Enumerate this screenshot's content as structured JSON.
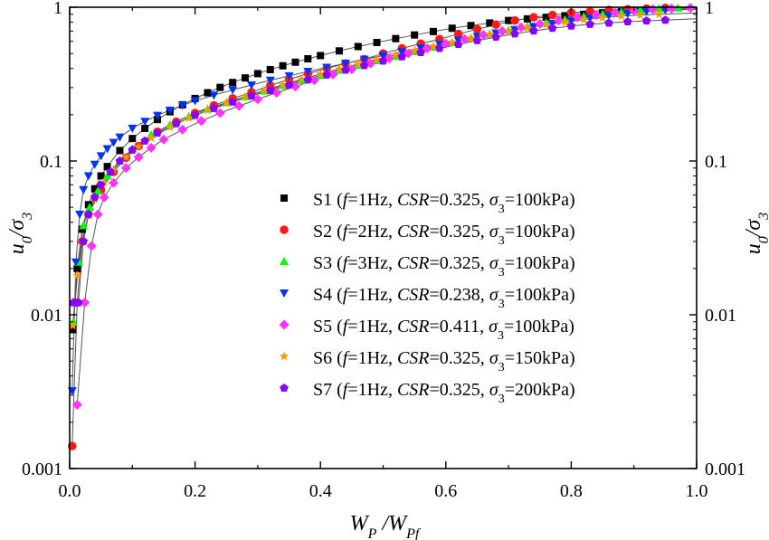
{
  "chart_data": {
    "type": "scatter",
    "xlabel": "W_P /W_Pf",
    "ylabel": "u_0/σ_3",
    "xlim": [
      0.0,
      1.0
    ],
    "ylim": [
      0.001,
      1
    ],
    "y_scale": "log",
    "grid": false,
    "legend_position": "center-right",
    "x_ticks": [
      0.0,
      0.2,
      0.4,
      0.6,
      0.8,
      1.0
    ],
    "x_tick_labels": [
      "0.0",
      "0.2",
      "0.4",
      "0.6",
      "0.8",
      "1.0"
    ],
    "y_ticks": [
      0.001,
      0.01,
      0.1,
      1
    ],
    "y_tick_labels": [
      "0.001",
      "0.01",
      "0.1",
      "1"
    ],
    "fit_curve_color": "#555555",
    "series": [
      {
        "name": "S1",
        "legend": {
          "id": "S1",
          "f": "1Hz",
          "csr": "0.325",
          "sigma": "100kPa"
        },
        "color": "#000000",
        "marker": "square",
        "x": [
          0.005,
          0.012,
          0.02,
          0.03,
          0.04,
          0.05,
          0.06,
          0.08,
          0.1,
          0.12,
          0.14,
          0.16,
          0.18,
          0.2,
          0.22,
          0.24,
          0.26,
          0.28,
          0.3,
          0.32,
          0.34,
          0.36,
          0.38,
          0.4,
          0.43,
          0.46,
          0.49,
          0.52,
          0.55,
          0.58,
          0.61,
          0.64,
          0.67,
          0.7,
          0.73,
          0.76,
          0.79,
          0.82,
          0.85,
          0.88,
          0.91
        ],
        "y": [
          0.008,
          0.02,
          0.036,
          0.052,
          0.066,
          0.08,
          0.092,
          0.117,
          0.14,
          0.163,
          0.186,
          0.209,
          0.232,
          0.255,
          0.278,
          0.301,
          0.324,
          0.347,
          0.37,
          0.393,
          0.416,
          0.439,
          0.462,
          0.485,
          0.52,
          0.555,
          0.59,
          0.625,
          0.66,
          0.695,
          0.73,
          0.76,
          0.79,
          0.82,
          0.84,
          0.86,
          0.88,
          0.9,
          0.92,
          0.935,
          0.95
        ]
      },
      {
        "name": "S2",
        "legend": {
          "id": "S2",
          "f": "2Hz",
          "csr": "0.325",
          "sigma": "100kPa"
        },
        "color": "#ff1a1a",
        "marker": "circle",
        "x": [
          0.004,
          0.012,
          0.02,
          0.03,
          0.05,
          0.07,
          0.09,
          0.11,
          0.14,
          0.17,
          0.2,
          0.23,
          0.26,
          0.29,
          0.32,
          0.35,
          0.38,
          0.41,
          0.44,
          0.47,
          0.5,
          0.53,
          0.56,
          0.59,
          0.62,
          0.65,
          0.68,
          0.71,
          0.74,
          0.77,
          0.8,
          0.83,
          0.86,
          0.89,
          0.92,
          0.95
        ],
        "y": [
          0.0014,
          0.012,
          0.03,
          0.045,
          0.065,
          0.085,
          0.105,
          0.125,
          0.155,
          0.18,
          0.205,
          0.23,
          0.255,
          0.28,
          0.31,
          0.34,
          0.37,
          0.4,
          0.43,
          0.46,
          0.5,
          0.54,
          0.58,
          0.62,
          0.67,
          0.72,
          0.77,
          0.82,
          0.86,
          0.89,
          0.92,
          0.94,
          0.96,
          0.97,
          0.98,
          0.99
        ]
      },
      {
        "name": "S3",
        "legend": {
          "id": "S3",
          "f": "3Hz",
          "csr": "0.325",
          "sigma": "100kPa"
        },
        "color": "#00ff00",
        "marker": "triangle-up",
        "x": [
          0.006,
          0.014,
          0.022,
          0.032,
          0.045,
          0.06,
          0.08,
          0.1,
          0.13,
          0.16,
          0.19,
          0.22,
          0.25,
          0.28,
          0.31,
          0.34,
          0.37,
          0.4,
          0.43,
          0.46,
          0.49,
          0.52,
          0.55,
          0.58,
          0.61,
          0.64,
          0.67,
          0.7,
          0.73,
          0.76,
          0.79,
          0.82,
          0.85,
          0.88,
          0.91,
          0.94,
          0.97
        ],
        "y": [
          0.009,
          0.022,
          0.038,
          0.05,
          0.064,
          0.08,
          0.1,
          0.12,
          0.148,
          0.172,
          0.195,
          0.218,
          0.24,
          0.262,
          0.285,
          0.31,
          0.335,
          0.36,
          0.39,
          0.42,
          0.45,
          0.48,
          0.515,
          0.55,
          0.59,
          0.63,
          0.67,
          0.71,
          0.75,
          0.79,
          0.83,
          0.87,
          0.9,
          0.93,
          0.96,
          0.98,
          0.99
        ]
      },
      {
        "name": "S4",
        "legend": {
          "id": "S4",
          "f": "1Hz",
          "csr": "0.238",
          "sigma": "100kPa"
        },
        "color": "#0033ff",
        "marker": "triangle-down",
        "x": [
          0.004,
          0.01,
          0.016,
          0.022,
          0.03,
          0.04,
          0.05,
          0.06,
          0.07,
          0.08,
          0.1,
          0.12,
          0.14,
          0.16,
          0.18,
          0.2,
          0.23,
          0.26,
          0.29,
          0.32,
          0.35,
          0.38,
          0.41,
          0.44,
          0.47,
          0.5,
          0.53,
          0.56,
          0.59,
          0.62,
          0.65,
          0.68,
          0.71,
          0.74,
          0.77,
          0.8,
          0.83,
          0.86,
          0.89,
          0.92,
          0.95
        ],
        "y": [
          0.0032,
          0.022,
          0.045,
          0.065,
          0.08,
          0.095,
          0.108,
          0.12,
          0.132,
          0.143,
          0.163,
          0.181,
          0.198,
          0.214,
          0.23,
          0.246,
          0.268,
          0.29,
          0.312,
          0.335,
          0.358,
          0.382,
          0.406,
          0.432,
          0.458,
          0.485,
          0.513,
          0.543,
          0.575,
          0.61,
          0.645,
          0.68,
          0.715,
          0.75,
          0.785,
          0.82,
          0.855,
          0.885,
          0.91,
          0.94,
          0.96
        ]
      },
      {
        "name": "S5",
        "legend": {
          "id": "S5",
          "f": "1Hz",
          "csr": "0.411",
          "sigma": "100kPa"
        },
        "color": "#ff33ff",
        "marker": "diamond",
        "x": [
          0.012,
          0.024,
          0.035,
          0.045,
          0.055,
          0.07,
          0.09,
          0.11,
          0.13,
          0.15,
          0.18,
          0.21,
          0.24,
          0.27,
          0.3,
          0.33,
          0.36,
          0.39,
          0.42,
          0.45,
          0.48,
          0.51,
          0.54,
          0.57,
          0.6,
          0.63,
          0.66,
          0.69,
          0.72,
          0.75,
          0.78,
          0.81,
          0.84,
          0.87,
          0.9,
          0.93,
          0.96,
          0.99
        ],
        "y": [
          0.0026,
          0.012,
          0.028,
          0.045,
          0.058,
          0.072,
          0.09,
          0.106,
          0.122,
          0.138,
          0.16,
          0.182,
          0.205,
          0.228,
          0.252,
          0.278,
          0.305,
          0.335,
          0.365,
          0.395,
          0.43,
          0.465,
          0.5,
          0.54,
          0.58,
          0.62,
          0.66,
          0.7,
          0.74,
          0.78,
          0.82,
          0.86,
          0.89,
          0.92,
          0.95,
          0.97,
          0.98,
          0.99
        ]
      },
      {
        "name": "S6",
        "legend": {
          "id": "S6",
          "f": "1Hz",
          "csr": "0.325",
          "sigma": "150kPa"
        },
        "color": "#ff9900",
        "marker": "star",
        "x": [
          0.005,
          0.012,
          0.02,
          0.03,
          0.04,
          0.055,
          0.07,
          0.09,
          0.11,
          0.13,
          0.16,
          0.19,
          0.22,
          0.25,
          0.28,
          0.31,
          0.34,
          0.37,
          0.4,
          0.43,
          0.46,
          0.49,
          0.52,
          0.55,
          0.58,
          0.61,
          0.64,
          0.67,
          0.7,
          0.73,
          0.76,
          0.79,
          0.82,
          0.85,
          0.88,
          0.91,
          0.94
        ],
        "y": [
          0.0085,
          0.018,
          0.03,
          0.044,
          0.056,
          0.072,
          0.088,
          0.106,
          0.124,
          0.141,
          0.166,
          0.19,
          0.214,
          0.238,
          0.262,
          0.287,
          0.313,
          0.34,
          0.368,
          0.397,
          0.427,
          0.458,
          0.49,
          0.523,
          0.557,
          0.592,
          0.628,
          0.664,
          0.7,
          0.735,
          0.77,
          0.8,
          0.83,
          0.855,
          0.875,
          0.89,
          0.9
        ]
      },
      {
        "name": "S7",
        "legend": {
          "id": "S7",
          "f": "1Hz",
          "csr": "0.325",
          "sigma": "200kPa"
        },
        "color": "#8800ff",
        "marker": "pentagon",
        "x": [
          0.006,
          0.014,
          0.022,
          0.03,
          0.04,
          0.05,
          0.065,
          0.08,
          0.1,
          0.12,
          0.14,
          0.17,
          0.2,
          0.23,
          0.26,
          0.29,
          0.32,
          0.35,
          0.38,
          0.41,
          0.44,
          0.47,
          0.5,
          0.53,
          0.56,
          0.59,
          0.62,
          0.65,
          0.68,
          0.71,
          0.74,
          0.77,
          0.8,
          0.83,
          0.86,
          0.89,
          0.92,
          0.95
        ],
        "y": [
          0.012,
          0.012,
          0.03,
          0.045,
          0.058,
          0.07,
          0.085,
          0.1,
          0.118,
          0.135,
          0.152,
          0.175,
          0.198,
          0.22,
          0.242,
          0.265,
          0.288,
          0.312,
          0.337,
          0.363,
          0.39,
          0.418,
          0.447,
          0.477,
          0.508,
          0.54,
          0.573,
          0.607,
          0.64,
          0.672,
          0.702,
          0.73,
          0.755,
          0.775,
          0.79,
          0.805,
          0.815,
          0.825
        ]
      }
    ]
  }
}
